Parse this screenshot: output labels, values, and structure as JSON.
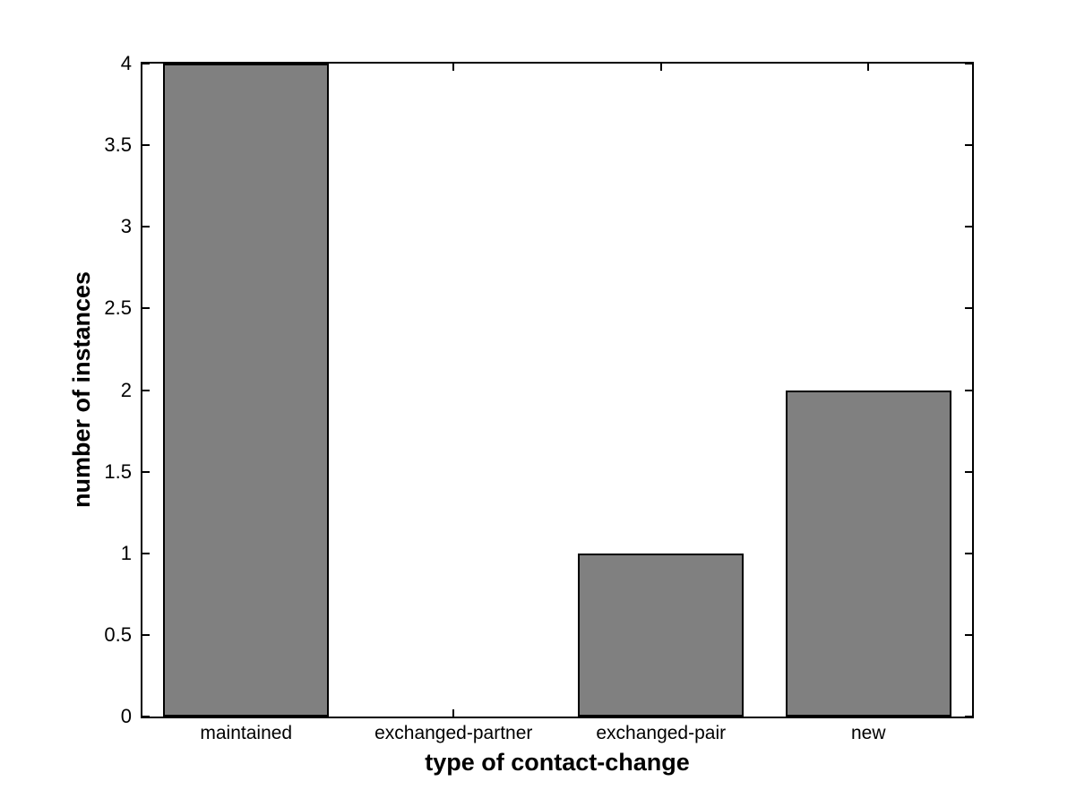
{
  "figure": {
    "background": "#ffffff"
  },
  "chart_data": {
    "type": "bar",
    "categories": [
      "maintained",
      "exchanged-partner",
      "exchanged-pair",
      "new"
    ],
    "values": [
      4,
      0,
      1,
      2
    ],
    "title": "",
    "xlabel": "type of contact-change",
    "ylabel": "number of instances",
    "ylim": [
      0,
      4
    ],
    "yticks": [
      0,
      0.5,
      1,
      1.5,
      2,
      2.5,
      3,
      3.5,
      4
    ],
    "ytick_labels": [
      "0",
      "0.5",
      "1",
      "1.5",
      "2",
      "2.5",
      "3",
      "3.5",
      "4"
    ],
    "bar_color": "#808080",
    "bar_edge_color": "#000000",
    "axis_color": "#000000",
    "bar_width_fraction": 0.8,
    "grid": false,
    "legend": null,
    "box": true,
    "tick_direction": "in"
  }
}
